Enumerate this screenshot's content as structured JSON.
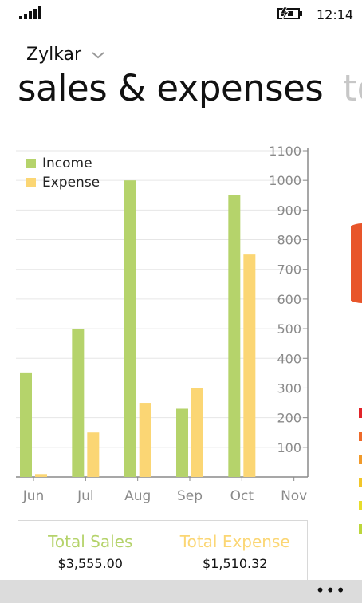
{
  "status": {
    "time": "12:14"
  },
  "header": {
    "account": "Zylkar",
    "title": "sales & expenses",
    "next_title": "to"
  },
  "colors": {
    "income": "#b5d36b",
    "expense": "#fbd674",
    "axis": "#8a8a8a",
    "grid": "#e6e6e6"
  },
  "chart_data": {
    "type": "bar",
    "categories": [
      "Jun",
      "Jul",
      "Aug",
      "Sep",
      "Oct",
      "Nov"
    ],
    "series": [
      {
        "name": "Income",
        "values": [
          350,
          500,
          1000,
          230,
          950,
          0
        ]
      },
      {
        "name": "Expense",
        "values": [
          10,
          150,
          250,
          300,
          750,
          0
        ]
      }
    ],
    "ylim": [
      0,
      1100
    ],
    "yticks": [
      100,
      200,
      300,
      400,
      500,
      600,
      700,
      800,
      900,
      1000,
      1100
    ],
    "grid": true,
    "legend_position": "top-left"
  },
  "totals": {
    "sales_label": "Total Sales",
    "sales_value": "$3,555.00",
    "expense_label": "Total Expense",
    "expense_value": "$1,510.32"
  },
  "app_bar": {
    "more": "•••"
  }
}
